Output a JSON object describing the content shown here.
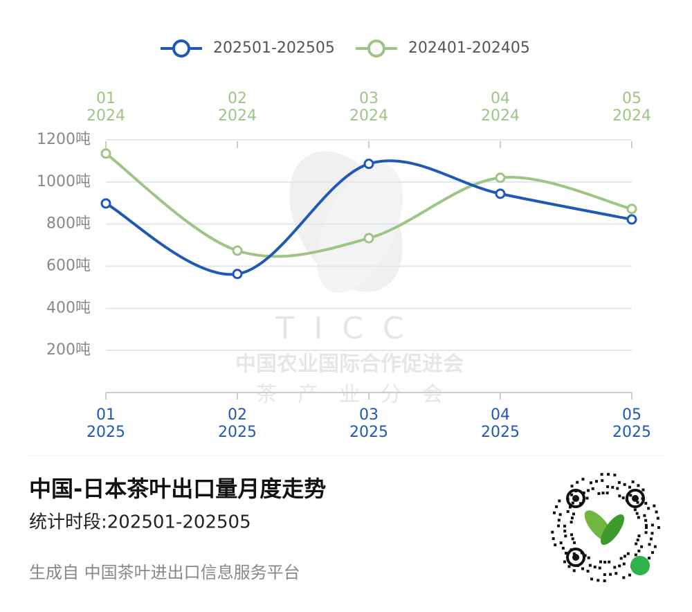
{
  "chart_data": {
    "type": "line",
    "legend_position": "top",
    "series": [
      {
        "name": "202501-202505",
        "color": "#1f59b5",
        "x_axis": "bottom",
        "values": [
          898,
          563,
          1086,
          944,
          822
        ]
      },
      {
        "name": "202401-202405",
        "color": "#9dc585",
        "x_axis": "top",
        "values": [
          1135,
          674,
          733,
          1020,
          872
        ]
      }
    ],
    "x_top": [
      {
        "month": "01",
        "year": "2024"
      },
      {
        "month": "02",
        "year": "2024"
      },
      {
        "month": "03",
        "year": "2024"
      },
      {
        "month": "04",
        "year": "2024"
      },
      {
        "month": "05",
        "year": "2024"
      }
    ],
    "x_bottom": [
      {
        "month": "01",
        "year": "2025"
      },
      {
        "month": "02",
        "year": "2025"
      },
      {
        "month": "03",
        "year": "2025"
      },
      {
        "month": "04",
        "year": "2025"
      },
      {
        "month": "05",
        "year": "2025"
      }
    ],
    "ylim": [
      0,
      1200
    ],
    "yticks": [
      {
        "value": 200,
        "label": "200吨"
      },
      {
        "value": 400,
        "label": "400吨"
      },
      {
        "value": 600,
        "label": "600吨"
      },
      {
        "value": 800,
        "label": "800吨"
      },
      {
        "value": 1000,
        "label": "1000吨"
      },
      {
        "value": 1200,
        "label": "1200吨"
      }
    ],
    "grid": true,
    "watermark": {
      "logo": "TICC",
      "line1": "中国农业国际合作促进会",
      "line2": "茶　产　业　分　会"
    }
  },
  "footer": {
    "title": "中国-日本茶叶出口量月度走势",
    "subtitle": "统计时段:202501-202505",
    "source": "生成自 中国茶叶进出口信息服务平台"
  }
}
